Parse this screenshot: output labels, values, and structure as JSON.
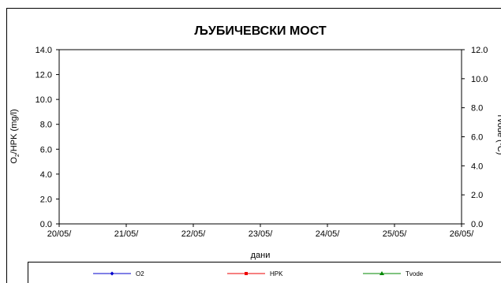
{
  "chart_data": {
    "type": "line",
    "title": "ЉУБИЧЕВСКИ МОСТ",
    "xlabel": "дани",
    "ylabel_left": "O₂/HPK (mg/l)",
    "ylabel_right": "Tvode (ºC)",
    "x_categories": [
      "20/05/",
      "21/05/",
      "22/05/",
      "23/05/",
      "24/05/",
      "25/05/",
      "26/05/"
    ],
    "y_left": {
      "range": [
        0,
        14
      ],
      "ticks": [
        "0.0",
        "2.0",
        "4.0",
        "6.0",
        "8.0",
        "10.0",
        "12.0",
        "14.0"
      ]
    },
    "y_right": {
      "range": [
        0,
        12
      ],
      "ticks": [
        "0.0",
        "2.0",
        "4.0",
        "6.0",
        "8.0",
        "10.0",
        "12.0"
      ]
    },
    "grid": false,
    "legend_position": "bottom",
    "series": [
      {
        "name": "O2",
        "color": "#0000cc",
        "marker": "diamond",
        "values": []
      },
      {
        "name": "HPK",
        "color": "#ee0000",
        "marker": "square",
        "values": []
      },
      {
        "name": "Tvode",
        "color": "#008800",
        "marker": "triangle",
        "values": []
      }
    ]
  }
}
